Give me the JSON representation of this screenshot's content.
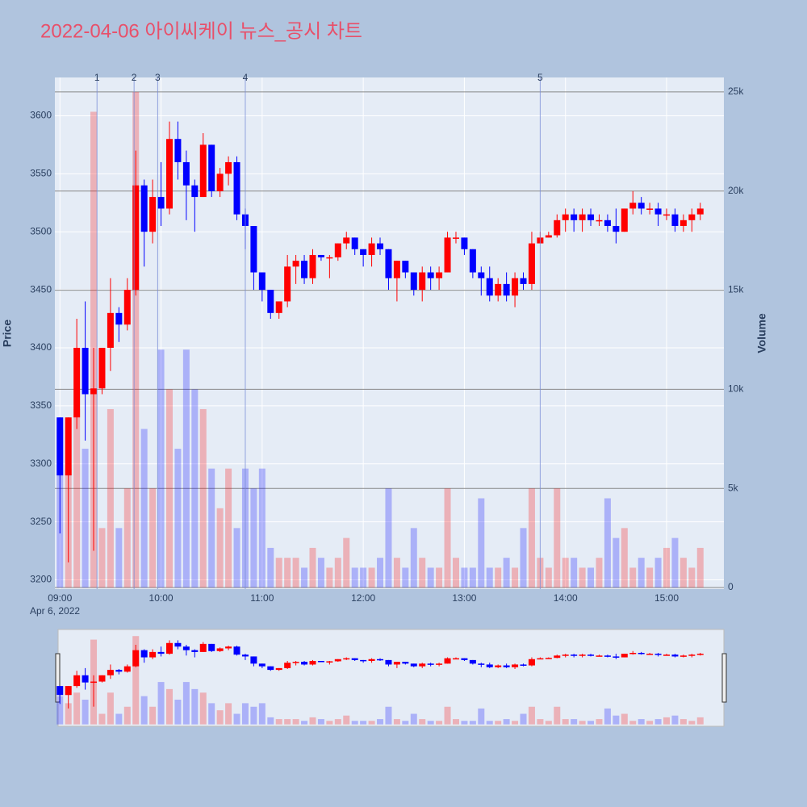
{
  "chart_data": {
    "type": "candlestick",
    "title": "2022-04-06 아이씨케이 뉴스_공시 차트",
    "y_label": "Price",
    "y2_label": "Volume",
    "x_date_label": "Apr 6, 2022",
    "increasing_color": "#ff0000",
    "decreasing_color": "#0000ff",
    "grid": true,
    "rangeslider": true,
    "xlim": [
      "08:57",
      "15:34"
    ],
    "xticks": [
      "09:00",
      "10:00",
      "11:00",
      "12:00",
      "13:00",
      "14:00",
      "15:00"
    ],
    "ylim": [
      3192,
      3633
    ],
    "yticks": [
      3200,
      3250,
      3300,
      3350,
      3400,
      3450,
      3500,
      3550,
      3600
    ],
    "y2lim": [
      -80,
      25730
    ],
    "y2ticks": [
      0,
      {
        "value": 5000,
        "label": "5k"
      },
      {
        "value": 10000,
        "label": "10k"
      },
      {
        "value": 15000,
        "label": "15k"
      },
      {
        "value": 20000,
        "label": "20k"
      },
      {
        "value": 25000,
        "label": "25k"
      }
    ],
    "events": [
      {
        "x": "09:22",
        "label": "1"
      },
      {
        "x": "09:44",
        "label": "2"
      },
      {
        "x": "09:58",
        "label": "3"
      },
      {
        "x": "10:50",
        "label": "4"
      },
      {
        "x": "13:45",
        "label": "5"
      }
    ],
    "x": [
      "09:00",
      "09:05",
      "09:10",
      "09:15",
      "09:20",
      "09:25",
      "09:30",
      "09:35",
      "09:40",
      "09:45",
      "09:50",
      "09:55",
      "10:00",
      "10:05",
      "10:10",
      "10:15",
      "10:20",
      "10:25",
      "10:30",
      "10:35",
      "10:40",
      "10:45",
      "10:50",
      "10:55",
      "11:00",
      "11:05",
      "11:10",
      "11:15",
      "11:20",
      "11:25",
      "11:30",
      "11:35",
      "11:40",
      "11:45",
      "11:50",
      "11:55",
      "12:00",
      "12:05",
      "12:10",
      "12:15",
      "12:20",
      "12:25",
      "12:30",
      "12:35",
      "12:40",
      "12:45",
      "12:50",
      "12:55",
      "13:00",
      "13:05",
      "13:10",
      "13:15",
      "13:20",
      "13:25",
      "13:30",
      "13:35",
      "13:40",
      "13:45",
      "13:50",
      "13:55",
      "14:00",
      "14:05",
      "14:10",
      "14:15",
      "14:20",
      "14:25",
      "14:30",
      "14:35",
      "14:40",
      "14:45",
      "14:50",
      "14:55",
      "15:00",
      "15:05",
      "15:10",
      "15:15",
      "15:20"
    ],
    "open": [
      3340,
      3290,
      3340,
      3400,
      3360,
      3365,
      3400,
      3430,
      3420,
      3450,
      3540,
      3500,
      3530,
      3520,
      3580,
      3560,
      3540,
      3530,
      3575,
      3535,
      3550,
      3560,
      3515,
      3505,
      3465,
      3450,
      3430,
      3440,
      3470,
      3475,
      3460,
      3480,
      3478,
      3478,
      3490,
      3495,
      3485,
      3480,
      3490,
      3485,
      3460,
      3475,
      3465,
      3450,
      3465,
      3460,
      3465,
      3495,
      3495,
      3485,
      3465,
      3460,
      3445,
      3455,
      3445,
      3460,
      3455,
      3490,
      3495,
      3497,
      3510,
      3515,
      3510,
      3515,
      3510,
      3510,
      3505,
      3500,
      3520,
      3525,
      3520,
      3520,
      3515,
      3515,
      3505,
      3510,
      3515
    ],
    "high": [
      3340,
      3340,
      3425,
      3440,
      3400,
      3400,
      3460,
      3435,
      3460,
      3570,
      3545,
      3545,
      3560,
      3595,
      3595,
      3570,
      3545,
      3585,
      3575,
      3555,
      3565,
      3565,
      3520,
      3505,
      3465,
      3450,
      3440,
      3480,
      3480,
      3480,
      3485,
      3480,
      3480,
      3490,
      3500,
      3495,
      3485,
      3495,
      3495,
      3485,
      3475,
      3475,
      3465,
      3470,
      3470,
      3470,
      3500,
      3500,
      3495,
      3485,
      3470,
      3470,
      3460,
      3465,
      3465,
      3465,
      3500,
      3500,
      3500,
      3515,
      3520,
      3520,
      3520,
      3520,
      3515,
      3515,
      3520,
      3520,
      3535,
      3530,
      3525,
      3525,
      3520,
      3520,
      3515,
      3520,
      3525
    ],
    "low": [
      3240,
      3215,
      3330,
      3320,
      3225,
      3360,
      3380,
      3405,
      3415,
      3445,
      3470,
      3490,
      3505,
      3515,
      3545,
      3510,
      3500,
      3530,
      3530,
      3530,
      3540,
      3510,
      3485,
      3450,
      3440,
      3425,
      3425,
      3435,
      3455,
      3455,
      3455,
      3475,
      3460,
      3475,
      3485,
      3480,
      3470,
      3470,
      3480,
      3450,
      3440,
      3460,
      3445,
      3440,
      3450,
      3450,
      3465,
      3490,
      3480,
      3460,
      3445,
      3440,
      3440,
      3440,
      3435,
      3450,
      3450,
      3490,
      3495,
      3495,
      3500,
      3500,
      3500,
      3505,
      3505,
      3500,
      3490,
      3500,
      3515,
      3515,
      3515,
      3505,
      3510,
      3500,
      3500,
      3500,
      3510
    ],
    "close": [
      3290,
      3340,
      3400,
      3360,
      3365,
      3400,
      3430,
      3420,
      3450,
      3540,
      3500,
      3530,
      3520,
      3580,
      3560,
      3540,
      3530,
      3575,
      3535,
      3550,
      3560,
      3515,
      3505,
      3465,
      3450,
      3430,
      3440,
      3470,
      3475,
      3460,
      3480,
      3478,
      3478,
      3490,
      3495,
      3485,
      3480,
      3490,
      3485,
      3460,
      3475,
      3465,
      3450,
      3465,
      3460,
      3465,
      3495,
      3495,
      3485,
      3465,
      3460,
      3445,
      3455,
      3445,
      3460,
      3455,
      3490,
      3495,
      3497,
      3510,
      3515,
      3510,
      3515,
      3510,
      3510,
      3505,
      3500,
      3520,
      3525,
      3520,
      3520,
      3515,
      3515,
      3505,
      3510,
      3515,
      3520
    ],
    "volume": [
      8000,
      6000,
      9000,
      7000,
      24000,
      3000,
      9000,
      3000,
      5000,
      25000,
      8000,
      5000,
      12000,
      10000,
      7000,
      12000,
      10000,
      9000,
      6000,
      4000,
      6000,
      3000,
      6000,
      5000,
      6000,
      2000,
      1500,
      1500,
      1500,
      1000,
      2000,
      1500,
      1000,
      1500,
      2500,
      1000,
      1000,
      1000,
      1500,
      5000,
      1500,
      1000,
      3000,
      1500,
      1000,
      1000,
      5000,
      1500,
      1000,
      1000,
      4500,
      1000,
      1000,
      1500,
      1000,
      3000,
      5000,
      1500,
      1000,
      5000,
      1500,
      1500,
      1000,
      1000,
      1500,
      4500,
      2500,
      3000,
      1000,
      1500,
      1000,
      1500,
      2000,
      2500,
      1500,
      1000,
      2000
    ]
  }
}
